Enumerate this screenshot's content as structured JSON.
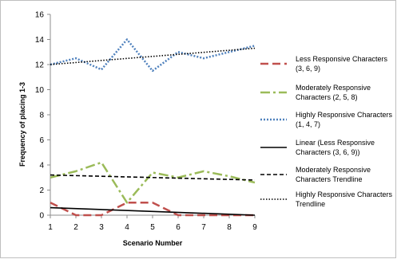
{
  "chart_data": {
    "type": "line",
    "title": "",
    "xlabel": "Scenario Number",
    "ylabel": "Frequency of placing 1-3",
    "x": [
      1,
      2,
      3,
      4,
      5,
      6,
      7,
      8,
      9
    ],
    "x_ticks": [
      "1",
      "2",
      "3",
      "4",
      "5",
      "6",
      "7",
      "8",
      "9"
    ],
    "y_ticks": [
      "0",
      "2",
      "4",
      "6",
      "8",
      "10",
      "12",
      "14",
      "16"
    ],
    "xlim": [
      1,
      9
    ],
    "ylim": [
      0,
      16
    ],
    "grid": false,
    "legend_position": "right",
    "series": [
      {
        "name": "Less Responsive Characters (3, 6, 9)",
        "values": [
          1,
          0,
          0,
          1,
          1,
          0,
          0,
          0,
          0
        ],
        "color": "#c0504d",
        "style": "dashed-long"
      },
      {
        "name": "Moderately Responsive Characters (2, 5, 8)",
        "values": [
          3,
          3.5,
          4.2,
          1,
          3.4,
          3,
          3.5,
          3.1,
          2.6
        ],
        "color": "#9bbb59",
        "style": "dash-dot"
      },
      {
        "name": "Highly Responsive Characters (1, 4, 7)",
        "values": [
          12,
          12.5,
          11.6,
          14,
          11.5,
          13,
          12.5,
          13,
          13.5
        ],
        "color": "#4f81bd",
        "style": "dotted"
      },
      {
        "name": "Linear (Less Responsive Characters (3, 6, 9))",
        "trend": [
          0.6,
          0.0
        ],
        "color": "#000000",
        "style": "solid"
      },
      {
        "name": "Moderately Responsive Characters Trendline",
        "trend": [
          3.2,
          2.8
        ],
        "color": "#000000",
        "style": "dashed"
      },
      {
        "name": "Highly Responsive Characters Trendline",
        "trend": [
          12.0,
          13.3
        ],
        "color": "#000000",
        "style": "dotted-fine"
      }
    ]
  }
}
